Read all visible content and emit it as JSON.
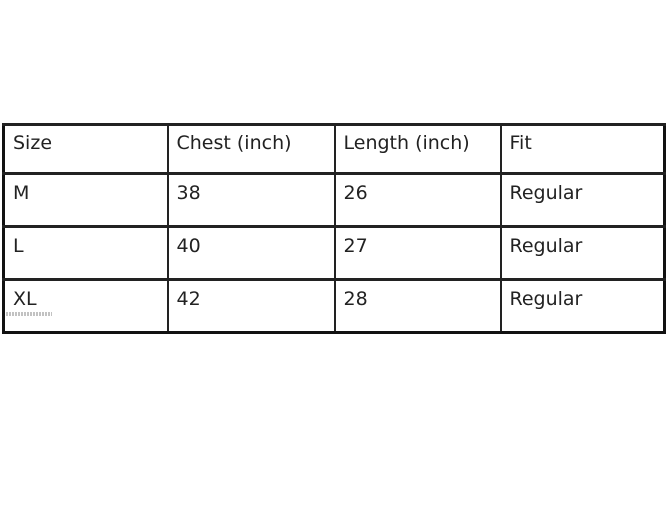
{
  "table": {
    "headers": [
      "Size",
      "Chest (inch)",
      "Length (inch)",
      "Fit"
    ],
    "rows": [
      [
        "M",
        "38",
        "26",
        "Regular"
      ],
      [
        "L",
        "40",
        "27",
        "Regular"
      ],
      [
        "XL",
        "42",
        "28",
        "Regular"
      ]
    ]
  }
}
